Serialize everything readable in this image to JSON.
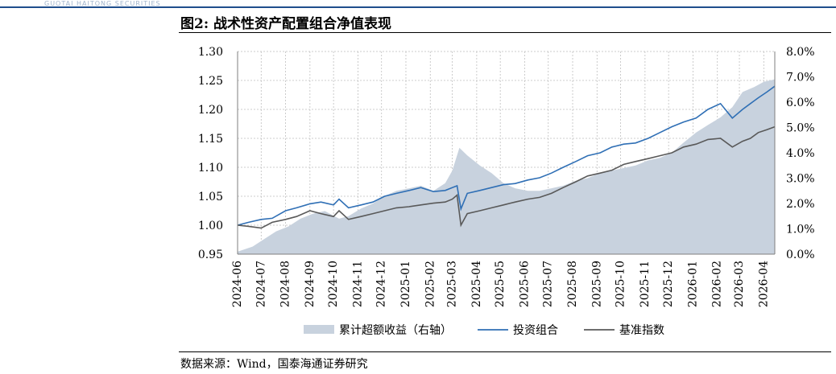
{
  "header": {
    "strip_text": "GUOTAI HAITONG SECURITIES"
  },
  "figure": {
    "title": "图2:  战术性资产配置组合净值表现",
    "source": "数据来源：Wind，国泰海通证券研究"
  },
  "colors": {
    "portfolio": "#2f6fb5",
    "benchmark": "#595959",
    "excess": "#c8d2de",
    "grid": "#bfbfbf",
    "header_rule": "#1f4e8c"
  },
  "chart_data": {
    "type": "line",
    "title": "",
    "xlabel": "",
    "ylabel": "",
    "ylim": [
      0.95,
      1.3
    ],
    "y_ticks": [
      "0.95",
      "1.00",
      "1.05",
      "1.10",
      "1.15",
      "1.20",
      "1.25",
      "1.30"
    ],
    "y2lim": [
      0.0,
      8.0
    ],
    "y2_ticks": [
      "0.0%",
      "1.0%",
      "2.0%",
      "3.0%",
      "4.0%",
      "5.0%",
      "6.0%",
      "7.0%",
      "8.0%"
    ],
    "x_ticks": [
      "2024-06",
      "2024-07",
      "2024-08",
      "2024-09",
      "2024-10",
      "2024-11",
      "2024-12",
      "2025-01",
      "2025-02",
      "2025-03",
      "2025-04",
      "2025-05",
      "2025-06",
      "2025-07",
      "2025-08",
      "2025-09",
      "2025-10",
      "2025-11",
      "2025-12",
      "2026-01",
      "2026-02",
      "2026-03",
      "2026-04"
    ],
    "x_range": [
      "2024-06",
      "2026-04-15"
    ],
    "grid": true,
    "legend_position": "bottom",
    "series": [
      {
        "name": "累计超额收益（右轴）",
        "kind": "area",
        "axis": "right",
        "x": [
          "2024-06-01",
          "2024-06-20",
          "2024-07-05",
          "2024-07-20",
          "2024-08-05",
          "2024-08-20",
          "2024-09-05",
          "2024-09-20",
          "2024-10-08",
          "2024-10-20",
          "2024-11-05",
          "2024-11-20",
          "2024-12-05",
          "2024-12-20",
          "2025-01-05",
          "2025-01-20",
          "2025-02-05",
          "2025-02-20",
          "2025-03-01",
          "2025-03-10",
          "2025-03-20",
          "2025-04-05",
          "2025-04-20",
          "2025-05-05",
          "2025-05-20",
          "2025-06-05",
          "2025-06-20",
          "2025-07-05",
          "2025-07-20",
          "2025-08-05",
          "2025-08-20",
          "2025-09-05",
          "2025-09-20",
          "2025-10-05",
          "2025-10-20",
          "2025-11-05",
          "2025-11-20",
          "2025-12-05",
          "2025-12-20",
          "2026-01-05",
          "2026-01-20",
          "2026-02-05",
          "2026-02-20",
          "2026-03-05",
          "2026-03-20",
          "2026-04-01",
          "2026-04-15"
        ],
        "values": [
          0.1,
          0.3,
          0.6,
          0.9,
          1.1,
          1.4,
          1.6,
          1.7,
          1.4,
          1.5,
          1.8,
          2.0,
          2.3,
          2.5,
          2.6,
          2.7,
          2.5,
          2.8,
          3.3,
          4.2,
          3.9,
          3.5,
          3.2,
          2.8,
          2.6,
          2.5,
          2.5,
          2.6,
          2.7,
          2.9,
          3.0,
          3.2,
          3.3,
          3.4,
          3.5,
          3.7,
          3.8,
          4.0,
          4.4,
          4.8,
          5.1,
          5.4,
          5.8,
          6.4,
          6.6,
          6.8,
          6.9
        ]
      },
      {
        "name": "投资组合",
        "kind": "line",
        "axis": "left",
        "x": [
          "2024-06-01",
          "2024-06-15",
          "2024-07-01",
          "2024-07-15",
          "2024-08-01",
          "2024-08-15",
          "2024-09-01",
          "2024-09-15",
          "2024-10-01",
          "2024-10-08",
          "2024-10-20",
          "2024-11-05",
          "2024-11-20",
          "2024-12-05",
          "2024-12-20",
          "2025-01-05",
          "2025-01-20",
          "2025-02-05",
          "2025-02-20",
          "2025-03-01",
          "2025-03-07",
          "2025-03-12",
          "2025-03-20",
          "2025-04-05",
          "2025-04-20",
          "2025-05-05",
          "2025-05-20",
          "2025-06-05",
          "2025-06-20",
          "2025-07-05",
          "2025-07-20",
          "2025-08-05",
          "2025-08-20",
          "2025-09-05",
          "2025-09-20",
          "2025-10-05",
          "2025-10-20",
          "2025-11-05",
          "2025-11-20",
          "2025-12-05",
          "2025-12-20",
          "2026-01-05",
          "2026-01-20",
          "2026-02-05",
          "2026-02-20",
          "2026-03-05",
          "2026-03-15",
          "2026-03-25",
          "2026-04-05",
          "2026-04-15"
        ],
        "values": [
          1.0,
          1.005,
          1.01,
          1.012,
          1.025,
          1.03,
          1.037,
          1.04,
          1.035,
          1.045,
          1.03,
          1.035,
          1.04,
          1.05,
          1.055,
          1.06,
          1.065,
          1.058,
          1.06,
          1.065,
          1.068,
          1.028,
          1.055,
          1.06,
          1.065,
          1.07,
          1.072,
          1.078,
          1.082,
          1.09,
          1.1,
          1.11,
          1.12,
          1.125,
          1.135,
          1.14,
          1.142,
          1.15,
          1.16,
          1.17,
          1.178,
          1.185,
          1.2,
          1.21,
          1.185,
          1.2,
          1.21,
          1.22,
          1.23,
          1.24
        ]
      },
      {
        "name": "基准指数",
        "kind": "line",
        "axis": "left",
        "x": [
          "2024-06-01",
          "2024-06-15",
          "2024-07-01",
          "2024-07-15",
          "2024-08-01",
          "2024-08-15",
          "2024-09-01",
          "2024-09-15",
          "2024-10-01",
          "2024-10-08",
          "2024-10-20",
          "2024-11-05",
          "2024-11-20",
          "2024-12-05",
          "2024-12-20",
          "2025-01-05",
          "2025-01-20",
          "2025-02-05",
          "2025-02-20",
          "2025-03-01",
          "2025-03-07",
          "2025-03-12",
          "2025-03-20",
          "2025-04-05",
          "2025-04-20",
          "2025-05-05",
          "2025-05-20",
          "2025-06-05",
          "2025-06-20",
          "2025-07-05",
          "2025-07-20",
          "2025-08-05",
          "2025-08-20",
          "2025-09-05",
          "2025-09-20",
          "2025-10-05",
          "2025-10-20",
          "2025-11-05",
          "2025-11-20",
          "2025-12-05",
          "2025-12-20",
          "2026-01-05",
          "2026-01-20",
          "2026-02-05",
          "2026-02-20",
          "2026-03-05",
          "2026-03-15",
          "2026-03-25",
          "2026-04-05",
          "2026-04-15"
        ],
        "values": [
          1.0,
          0.998,
          0.995,
          1.005,
          1.01,
          1.015,
          1.025,
          1.02,
          1.015,
          1.025,
          1.01,
          1.015,
          1.02,
          1.025,
          1.03,
          1.032,
          1.035,
          1.038,
          1.04,
          1.045,
          1.052,
          1.0,
          1.02,
          1.025,
          1.03,
          1.035,
          1.04,
          1.045,
          1.048,
          1.055,
          1.065,
          1.075,
          1.085,
          1.09,
          1.095,
          1.105,
          1.11,
          1.115,
          1.12,
          1.125,
          1.135,
          1.14,
          1.148,
          1.15,
          1.135,
          1.145,
          1.15,
          1.16,
          1.165,
          1.17
        ]
      }
    ]
  }
}
